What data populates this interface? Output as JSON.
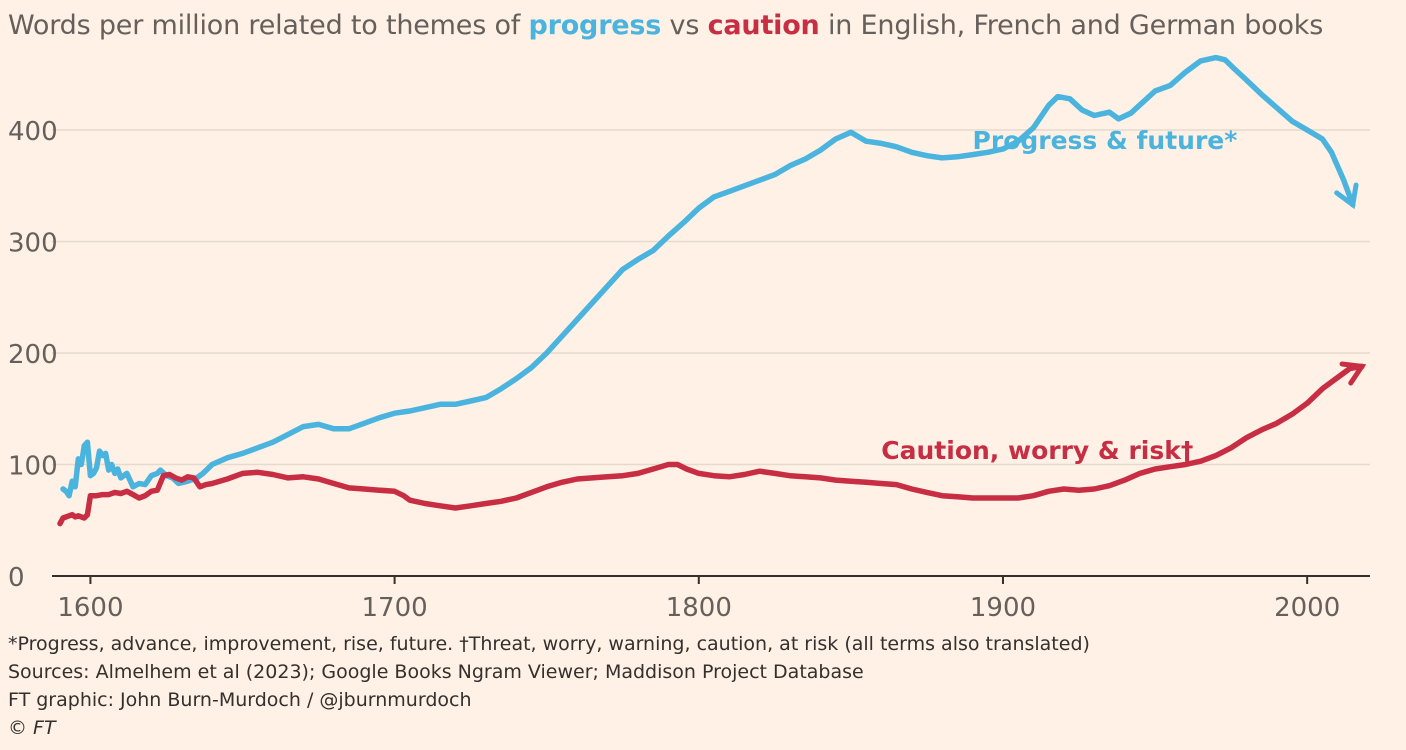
{
  "title": {
    "pre": "Words per million related to themes of ",
    "kw1": "progress",
    "mid": " vs ",
    "kw2": "caution",
    "post": " in English, French and German books"
  },
  "colors": {
    "progress": "#4bb4de",
    "caution": "#c72e43",
    "grid": "#e6d9ce",
    "axis": "#33302e",
    "tick_text": "#66605c"
  },
  "chart_data": {
    "type": "line",
    "xlim": [
      1590,
      2020
    ],
    "ylim": [
      0,
      470
    ],
    "x_ticks": [
      1600,
      1700,
      1800,
      1900,
      2000
    ],
    "y_ticks": [
      0,
      100,
      200,
      300,
      400
    ],
    "grid": "horizontal",
    "series": [
      {
        "name": "Progress & future*",
        "color_key": "progress",
        "label_value": [
          1890,
          383
        ],
        "points": [
          [
            1591,
            78
          ],
          [
            1592,
            76
          ],
          [
            1593,
            72
          ],
          [
            1594,
            85
          ],
          [
            1595,
            80
          ],
          [
            1596,
            105
          ],
          [
            1597,
            100
          ],
          [
            1598,
            117
          ],
          [
            1599,
            120
          ],
          [
            1600,
            90
          ],
          [
            1601,
            92
          ],
          [
            1602,
            97
          ],
          [
            1603,
            112
          ],
          [
            1604,
            108
          ],
          [
            1605,
            110
          ],
          [
            1606,
            95
          ],
          [
            1607,
            100
          ],
          [
            1608,
            92
          ],
          [
            1609,
            96
          ],
          [
            1610,
            88
          ],
          [
            1612,
            92
          ],
          [
            1614,
            80
          ],
          [
            1616,
            83
          ],
          [
            1618,
            82
          ],
          [
            1620,
            90
          ],
          [
            1622,
            92
          ],
          [
            1623,
            95
          ],
          [
            1625,
            90
          ],
          [
            1627,
            88
          ],
          [
            1629,
            83
          ],
          [
            1632,
            85
          ],
          [
            1635,
            88
          ],
          [
            1637,
            92
          ],
          [
            1640,
            100
          ],
          [
            1645,
            106
          ],
          [
            1650,
            110
          ],
          [
            1655,
            115
          ],
          [
            1660,
            120
          ],
          [
            1665,
            127
          ],
          [
            1670,
            134
          ],
          [
            1675,
            136
          ],
          [
            1680,
            132
          ],
          [
            1685,
            132
          ],
          [
            1690,
            137
          ],
          [
            1695,
            142
          ],
          [
            1700,
            146
          ],
          [
            1705,
            148
          ],
          [
            1710,
            151
          ],
          [
            1715,
            154
          ],
          [
            1720,
            154
          ],
          [
            1725,
            157
          ],
          [
            1730,
            160
          ],
          [
            1735,
            168
          ],
          [
            1740,
            177
          ],
          [
            1745,
            187
          ],
          [
            1750,
            200
          ],
          [
            1755,
            215
          ],
          [
            1760,
            230
          ],
          [
            1765,
            245
          ],
          [
            1770,
            260
          ],
          [
            1775,
            275
          ],
          [
            1780,
            284
          ],
          [
            1785,
            292
          ],
          [
            1790,
            305
          ],
          [
            1795,
            317
          ],
          [
            1800,
            330
          ],
          [
            1805,
            340
          ],
          [
            1810,
            345
          ],
          [
            1815,
            350
          ],
          [
            1820,
            355
          ],
          [
            1825,
            360
          ],
          [
            1830,
            368
          ],
          [
            1835,
            374
          ],
          [
            1840,
            382
          ],
          [
            1845,
            392
          ],
          [
            1850,
            398
          ],
          [
            1855,
            390
          ],
          [
            1860,
            388
          ],
          [
            1865,
            385
          ],
          [
            1870,
            380
          ],
          [
            1875,
            377
          ],
          [
            1880,
            375
          ],
          [
            1885,
            376
          ],
          [
            1890,
            378
          ],
          [
            1895,
            380
          ],
          [
            1900,
            383
          ],
          [
            1905,
            390
          ],
          [
            1910,
            402
          ],
          [
            1915,
            422
          ],
          [
            1918,
            430
          ],
          [
            1922,
            428
          ],
          [
            1926,
            418
          ],
          [
            1930,
            413
          ],
          [
            1935,
            416
          ],
          [
            1938,
            410
          ],
          [
            1942,
            415
          ],
          [
            1946,
            425
          ],
          [
            1950,
            435
          ],
          [
            1955,
            440
          ],
          [
            1960,
            452
          ],
          [
            1965,
            462
          ],
          [
            1970,
            465
          ],
          [
            1973,
            463
          ],
          [
            1976,
            455
          ],
          [
            1980,
            445
          ],
          [
            1985,
            432
          ],
          [
            1990,
            420
          ],
          [
            1995,
            408
          ],
          [
            2000,
            400
          ],
          [
            2005,
            392
          ],
          [
            2008,
            380
          ],
          [
            2012,
            355
          ],
          [
            2015,
            333
          ]
        ]
      },
      {
        "name": "Caution, worry & risk†",
        "color_key": "caution",
        "label_value": [
          1860,
          105
        ],
        "points": [
          [
            1590,
            47
          ],
          [
            1591,
            52
          ],
          [
            1592,
            53
          ],
          [
            1593,
            54
          ],
          [
            1594,
            55
          ],
          [
            1595,
            53
          ],
          [
            1596,
            54
          ],
          [
            1597,
            53
          ],
          [
            1598,
            52
          ],
          [
            1599,
            55
          ],
          [
            1600,
            72
          ],
          [
            1602,
            72
          ],
          [
            1604,
            73
          ],
          [
            1606,
            73
          ],
          [
            1608,
            75
          ],
          [
            1610,
            74
          ],
          [
            1612,
            76
          ],
          [
            1614,
            73
          ],
          [
            1616,
            70
          ],
          [
            1618,
            72
          ],
          [
            1620,
            76
          ],
          [
            1622,
            77
          ],
          [
            1624,
            90
          ],
          [
            1626,
            91
          ],
          [
            1628,
            88
          ],
          [
            1630,
            86
          ],
          [
            1632,
            89
          ],
          [
            1634,
            88
          ],
          [
            1636,
            80
          ],
          [
            1638,
            82
          ],
          [
            1640,
            83
          ],
          [
            1645,
            87
          ],
          [
            1650,
            92
          ],
          [
            1655,
            93
          ],
          [
            1660,
            91
          ],
          [
            1665,
            88
          ],
          [
            1670,
            89
          ],
          [
            1675,
            87
          ],
          [
            1680,
            83
          ],
          [
            1685,
            79
          ],
          [
            1690,
            78
          ],
          [
            1695,
            77
          ],
          [
            1700,
            76
          ],
          [
            1703,
            72
          ],
          [
            1705,
            68
          ],
          [
            1710,
            65
          ],
          [
            1715,
            63
          ],
          [
            1720,
            61
          ],
          [
            1725,
            63
          ],
          [
            1730,
            65
          ],
          [
            1735,
            67
          ],
          [
            1740,
            70
          ],
          [
            1745,
            75
          ],
          [
            1750,
            80
          ],
          [
            1755,
            84
          ],
          [
            1760,
            87
          ],
          [
            1765,
            88
          ],
          [
            1770,
            89
          ],
          [
            1775,
            90
          ],
          [
            1780,
            92
          ],
          [
            1785,
            96
          ],
          [
            1790,
            100
          ],
          [
            1793,
            100
          ],
          [
            1796,
            96
          ],
          [
            1800,
            92
          ],
          [
            1805,
            90
          ],
          [
            1810,
            89
          ],
          [
            1815,
            91
          ],
          [
            1820,
            94
          ],
          [
            1825,
            92
          ],
          [
            1830,
            90
          ],
          [
            1835,
            89
          ],
          [
            1840,
            88
          ],
          [
            1845,
            86
          ],
          [
            1850,
            85
          ],
          [
            1855,
            84
          ],
          [
            1860,
            83
          ],
          [
            1865,
            82
          ],
          [
            1870,
            78
          ],
          [
            1875,
            75
          ],
          [
            1880,
            72
          ],
          [
            1885,
            71
          ],
          [
            1890,
            70
          ],
          [
            1895,
            70
          ],
          [
            1900,
            70
          ],
          [
            1905,
            70
          ],
          [
            1910,
            72
          ],
          [
            1915,
            76
          ],
          [
            1920,
            78
          ],
          [
            1925,
            77
          ],
          [
            1930,
            78
          ],
          [
            1935,
            81
          ],
          [
            1940,
            86
          ],
          [
            1945,
            92
          ],
          [
            1950,
            96
          ],
          [
            1955,
            98
          ],
          [
            1960,
            100
          ],
          [
            1965,
            103
          ],
          [
            1970,
            108
          ],
          [
            1975,
            115
          ],
          [
            1980,
            124
          ],
          [
            1985,
            131
          ],
          [
            1990,
            137
          ],
          [
            1995,
            145
          ],
          [
            2000,
            155
          ],
          [
            2005,
            168
          ],
          [
            2010,
            178
          ],
          [
            2014,
            186
          ],
          [
            2018,
            188
          ]
        ]
      }
    ]
  },
  "footer": {
    "note": "*Progress, advance, improvement, rise, future. †Threat, worry, warning, caution, at risk (all terms also translated)",
    "sources": "Sources: Almelhem et al (2023); Google Books Ngram Viewer; Maddison Project Database",
    "graphic": "FT graphic: John Burn-Murdoch / @jburnmurdoch",
    "copyright": "© FT"
  }
}
